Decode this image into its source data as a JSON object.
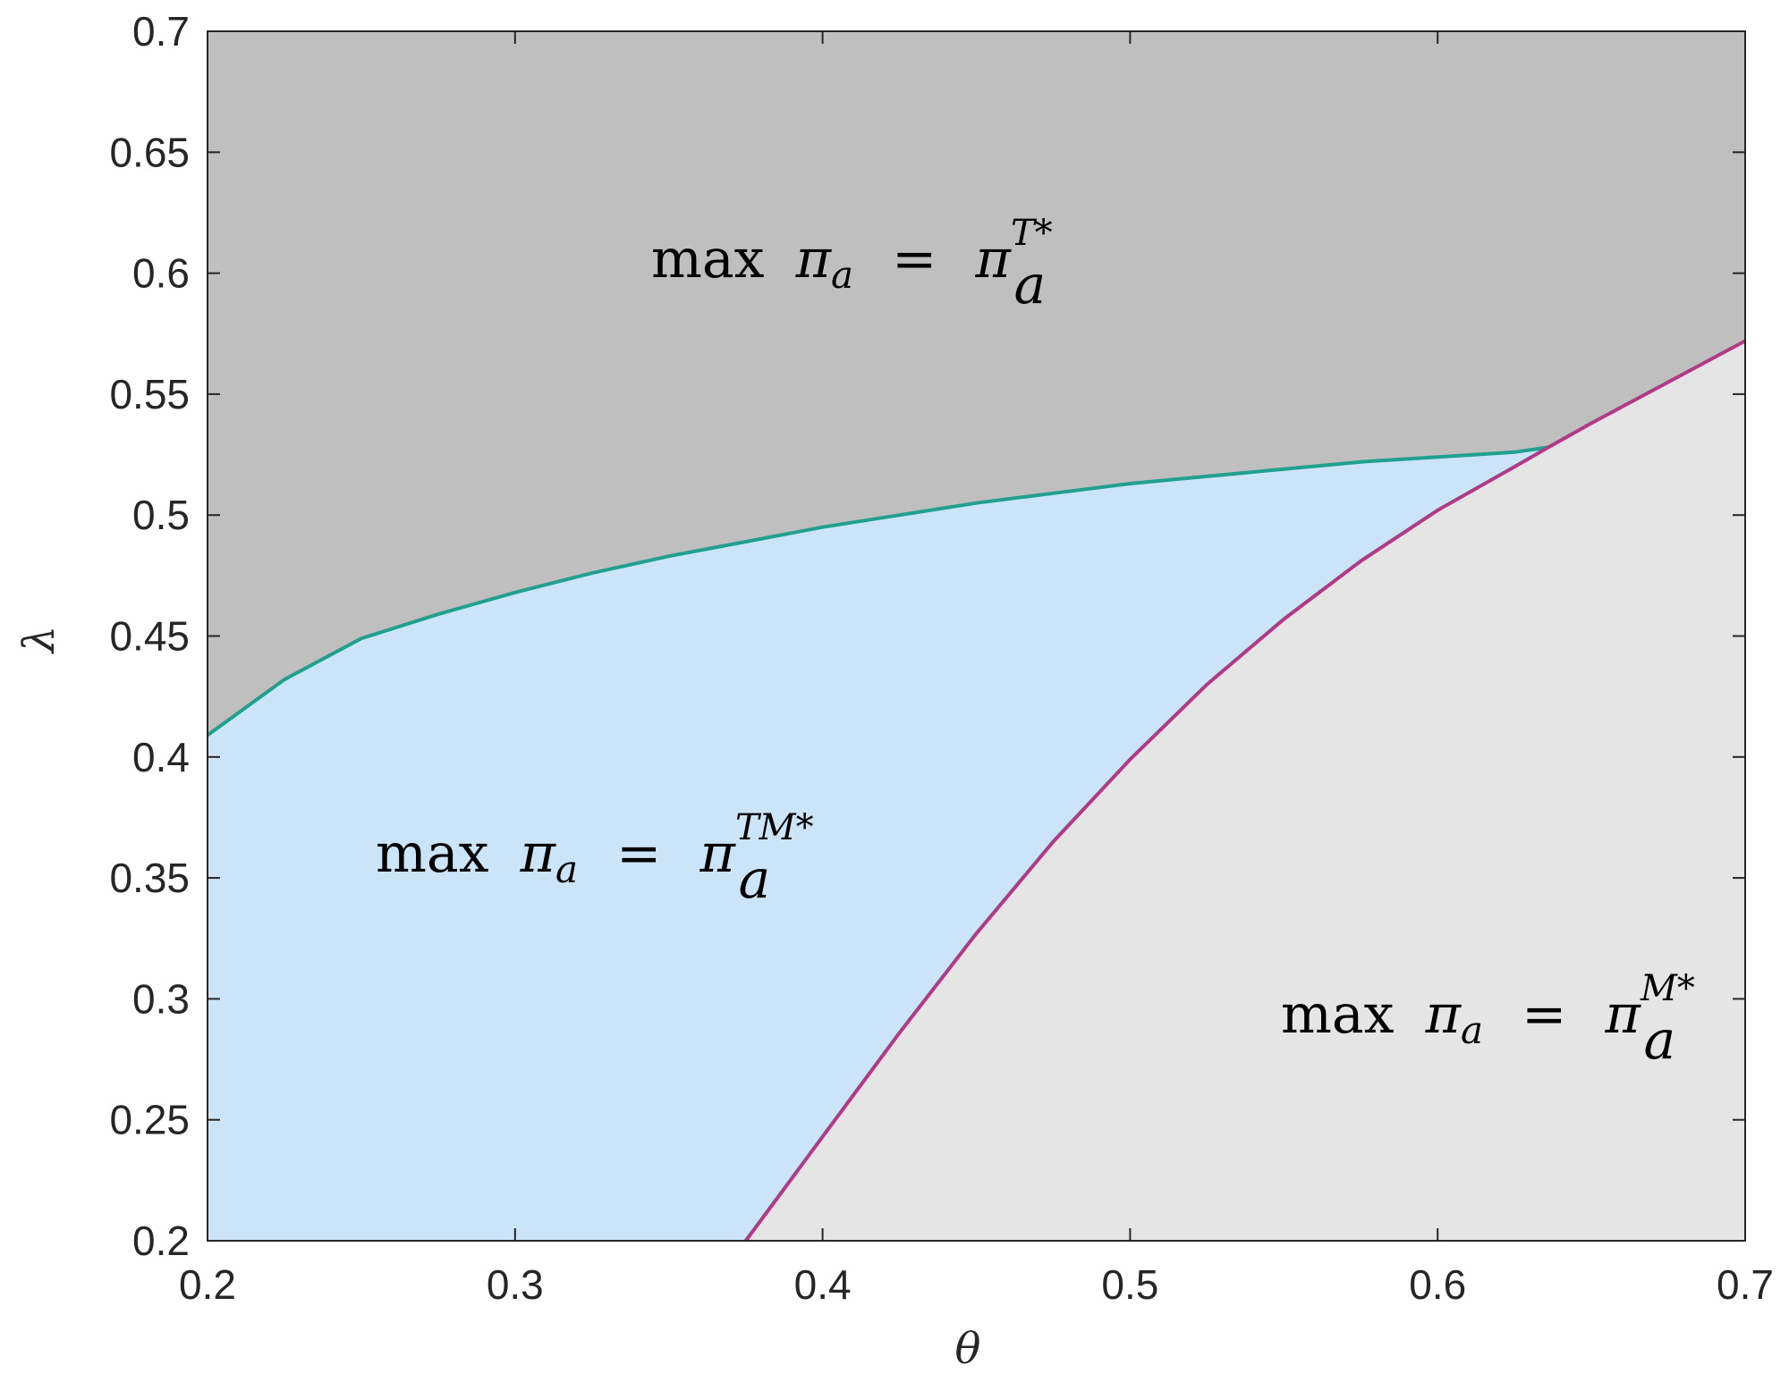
{
  "chart_data": {
    "type": "area",
    "title": "",
    "xlabel": "θ",
    "ylabel": "λ",
    "xlim": [
      0.2,
      0.7
    ],
    "ylim": [
      0.2,
      0.7
    ],
    "xticks": [
      "0.2",
      "0.3",
      "0.4",
      "0.5",
      "0.6",
      "0.7"
    ],
    "yticks": [
      "0.2",
      "0.25",
      "0.3",
      "0.35",
      "0.4",
      "0.45",
      "0.5",
      "0.55",
      "0.6",
      "0.65",
      "0.7"
    ],
    "grid": false,
    "colors": {
      "upper_region": "#bfbfbf",
      "middle_region": "#cce4f7",
      "lower_region": "#e5e5e5",
      "upper_curve": "#22a08f",
      "lower_curve": "#b03a85"
    },
    "curves": [
      {
        "x": [
          0.2,
          0.225,
          0.25,
          0.275,
          0.3,
          0.325,
          0.35,
          0.375,
          0.4,
          0.425,
          0.45,
          0.475,
          0.5,
          0.525,
          0.55,
          0.575,
          0.6,
          0.625,
          0.636
        ],
        "y": [
          0.409,
          0.432,
          0.449,
          0.459,
          0.468,
          0.476,
          0.483,
          0.489,
          0.495,
          0.5,
          0.505,
          0.509,
          0.513,
          0.516,
          0.519,
          0.522,
          0.524,
          0.526,
          0.528
        ]
      },
      {
        "x": [
          0.375,
          0.4,
          0.425,
          0.45,
          0.475,
          0.5,
          0.525,
          0.55,
          0.575,
          0.6,
          0.625,
          0.636,
          0.65,
          0.675,
          0.7
        ],
        "y": [
          0.2,
          0.243,
          0.286,
          0.327,
          0.365,
          0.399,
          0.43,
          0.457,
          0.481,
          0.502,
          0.52,
          0.528,
          0.538,
          0.555,
          0.572
        ]
      }
    ],
    "regions": [
      {
        "label": {
          "base": "max",
          "var": "π",
          "sub": "a",
          "sup": "T*"
        },
        "at": [
          0.325,
          0.6
        ]
      },
      {
        "label": {
          "base": "max",
          "var": "π",
          "sub": "a",
          "sup": "TM*"
        },
        "at": [
          0.255,
          0.36
        ]
      },
      {
        "label": {
          "base": "max",
          "var": "π",
          "sub": "a",
          "sup": "M*"
        },
        "at": [
          0.545,
          0.29
        ]
      }
    ]
  },
  "region_labels": {
    "upper": {
      "base": "max",
      "var": "π",
      "sub": "a",
      "eq": "=",
      "sup": "T*"
    },
    "middle": {
      "base": "max",
      "var": "π",
      "sub": "a",
      "eq": "=",
      "sup": "TM*"
    },
    "lower": {
      "base": "max",
      "var": "π",
      "sub": "a",
      "eq": "=",
      "sup": "M*"
    }
  }
}
